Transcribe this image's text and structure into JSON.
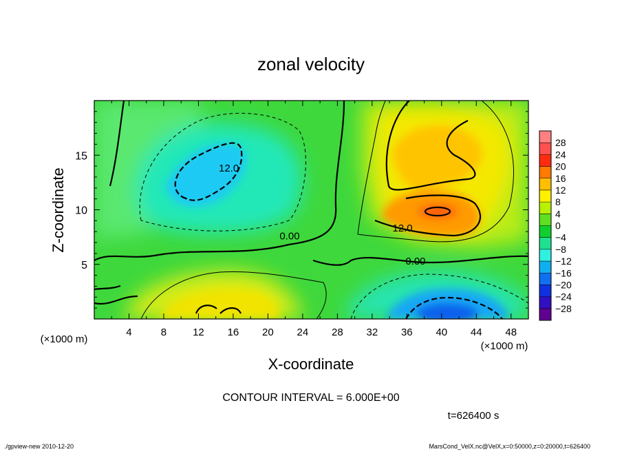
{
  "chart_data": {
    "type": "heatmap",
    "title": "zonal velocity",
    "xlabel": "X-coordinate",
    "ylabel": "Z-coordinate",
    "x_unit": "(×1000 m)",
    "y_unit": "(×1000 m)",
    "xlim": [
      0,
      50
    ],
    "ylim": [
      0,
      20
    ],
    "x_ticks": [
      4,
      8,
      12,
      16,
      20,
      24,
      28,
      32,
      36,
      40,
      44,
      48
    ],
    "y_ticks": [
      5,
      10,
      15
    ],
    "contour_interval_text": "CONTOUR INTERVAL = 6.000E+00",
    "time_text": "t=626400 s",
    "footer_left": "./gpview-new  2010-12-20",
    "footer_right": "MarsCond_VelX.nc@VelX,x=0:50000,z=0:20000,t=626400",
    "contour_labels": [
      {
        "text": "12.0",
        "x": 15.5,
        "z": 13.5
      },
      {
        "text": "0.00",
        "x": 22.5,
        "z": 7.3
      },
      {
        "text": "12.0",
        "x": 35.5,
        "z": 8.0
      },
      {
        "text": "0.00",
        "x": 37.0,
        "z": 5.0
      }
    ],
    "colorbar": {
      "labels": [
        "28",
        "24",
        "20",
        "16",
        "12",
        "8",
        "4",
        "0",
        "−4",
        "−8",
        "−12",
        "−16",
        "−20",
        "−24",
        "−28"
      ],
      "colors": [
        "#ff8080",
        "#ff5050",
        "#ff2c10",
        "#ff7a00",
        "#ffbe00",
        "#fff000",
        "#b8f000",
        "#60e020",
        "#10d030",
        "#20e090",
        "#30f0e0",
        "#10b0f0",
        "#1070f0",
        "#1030e0",
        "#3010c0",
        "#600090"
      ]
    },
    "features": [
      {
        "name": "positive jet core",
        "x": 40,
        "z": 10,
        "value": 16
      },
      {
        "name": "upper positive region",
        "x": 38,
        "z": 16,
        "value": 12
      },
      {
        "name": "upper negative core",
        "x": 14,
        "z": 12.5,
        "value": -12
      },
      {
        "name": "surface negative core",
        "x": 40,
        "z": 1,
        "value": -16
      },
      {
        "name": "surface positive region",
        "x": 14,
        "z": 2,
        "value": 8
      }
    ]
  }
}
